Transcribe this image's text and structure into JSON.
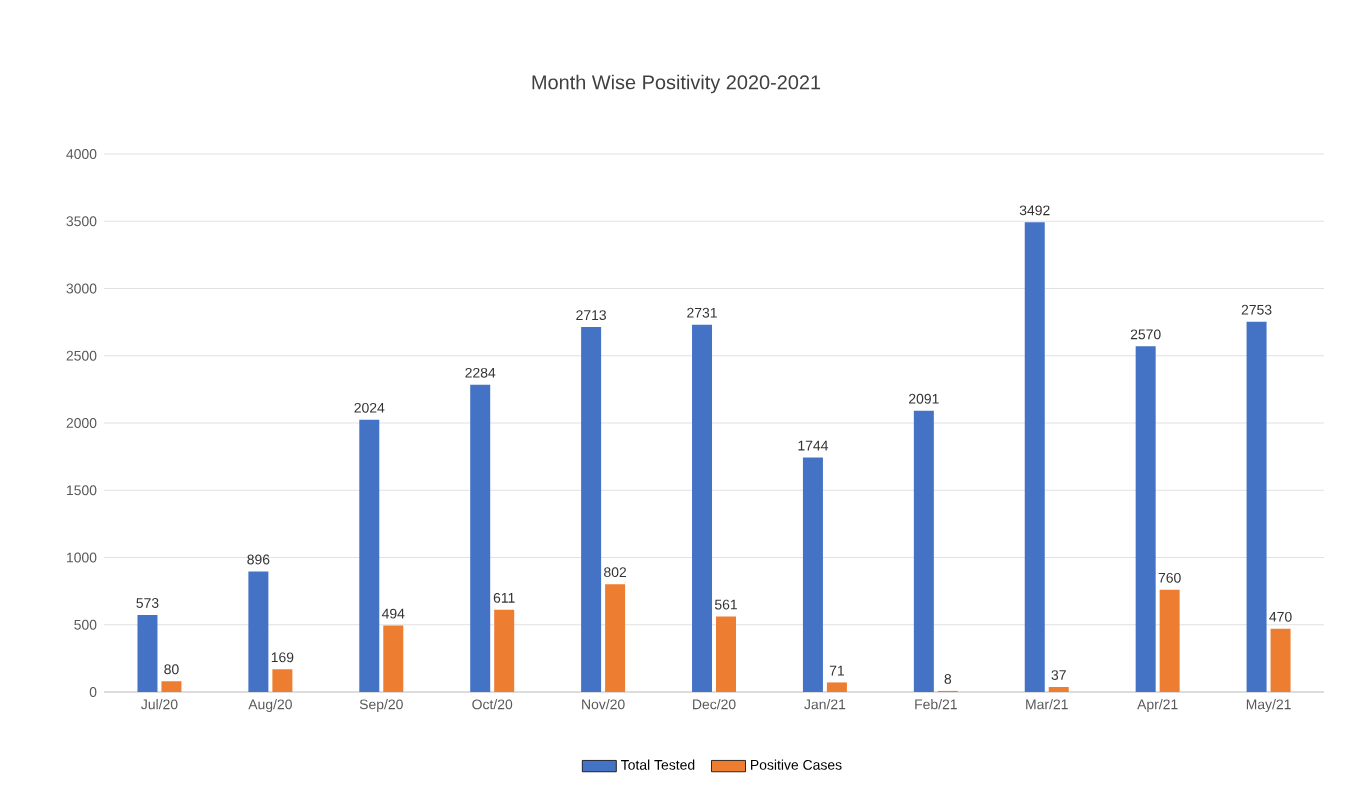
{
  "chart_data": {
    "type": "bar",
    "title": "Month Wise Positivity 2020-2021",
    "categories": [
      "Jul/20",
      "Aug/20",
      "Sep/20",
      "Oct/20",
      "Nov/20",
      "Dec/20",
      "Jan/21",
      "Feb/21",
      "Mar/21",
      "Apr/21",
      "May/21"
    ],
    "series": [
      {
        "name": "Total Tested",
        "color": "#4472c4",
        "values": [
          573,
          896,
          2024,
          2284,
          2713,
          2731,
          1744,
          2091,
          3492,
          2570,
          2753
        ]
      },
      {
        "name": "Positive Cases",
        "color": "#ed7d31",
        "values": [
          80,
          169,
          494,
          611,
          802,
          561,
          71,
          8,
          37,
          760,
          470
        ]
      }
    ],
    "ylim": [
      0,
      4000
    ],
    "yticks": [
      0,
      500,
      1000,
      1500,
      2000,
      2500,
      3000,
      3500,
      4000
    ],
    "grid": "y",
    "legend": "bottom",
    "data_labels": true
  }
}
